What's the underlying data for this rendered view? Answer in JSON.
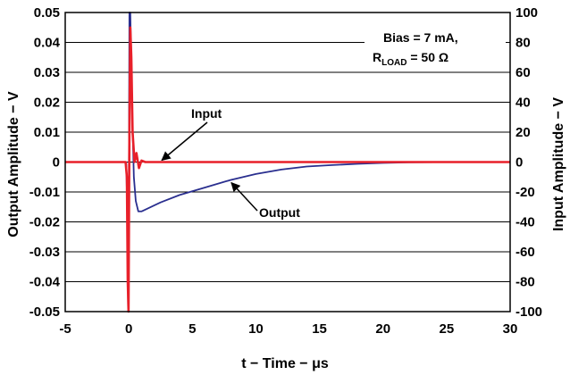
{
  "chart_data": {
    "type": "line",
    "xlabel": "t − Time − μs",
    "ylabel_left": "Output Amplitude − V",
    "ylabel_right": "Input Amplitude − V",
    "xlim": [
      -5,
      30
    ],
    "ylim_left": [
      -0.05,
      0.05
    ],
    "ylim_right": [
      -100,
      100
    ],
    "xticks": [
      "-5",
      "0",
      "5",
      "10",
      "15",
      "20",
      "25",
      "30"
    ],
    "yticks_left": [
      "0.05",
      "0.04",
      "0.03",
      "0.02",
      "0.01",
      "0",
      "-0.01",
      "-0.02",
      "-0.03",
      "-0.04",
      "-0.05"
    ],
    "yticks_right": [
      "100",
      "80",
      "60",
      "40",
      "20",
      "0",
      "-20",
      "-40",
      "-60",
      "-80",
      "-100"
    ],
    "grid": "horizontal",
    "annotation_box": {
      "line1": "Bias = 7 mA,",
      "line2_main": "R",
      "line2_sub": "LOAD",
      "line2_rest": " = 50 Ω"
    },
    "series": [
      {
        "name": "Input",
        "axis": "right",
        "color": "#e8202a",
        "points": [
          [
            -5,
            0
          ],
          [
            -0.25,
            0
          ],
          [
            -0.15,
            -10
          ],
          [
            -0.08,
            -80
          ],
          [
            -0.02,
            -100
          ],
          [
            0.05,
            20
          ],
          [
            0.12,
            90
          ],
          [
            0.2,
            70
          ],
          [
            0.3,
            20
          ],
          [
            0.45,
            0
          ],
          [
            0.6,
            6
          ],
          [
            0.8,
            -4
          ],
          [
            1.0,
            1
          ],
          [
            1.3,
            0
          ],
          [
            30,
            0
          ]
        ]
      },
      {
        "name": "Output",
        "axis": "left",
        "color": "#2a2f8f",
        "points": [
          [
            -5,
            0
          ],
          [
            -0.2,
            0
          ],
          [
            -0.1,
            -0.02
          ],
          [
            -0.05,
            -0.05
          ],
          [
            0.0,
            -0.02
          ],
          [
            0.05,
            0.05
          ],
          [
            0.12,
            0.05
          ],
          [
            0.25,
            0.02
          ],
          [
            0.4,
            -0.005
          ],
          [
            0.55,
            -0.013
          ],
          [
            0.75,
            -0.0165
          ],
          [
            1.0,
            -0.0165
          ],
          [
            1.5,
            -0.0155
          ],
          [
            2.5,
            -0.0135
          ],
          [
            4,
            -0.011
          ],
          [
            6,
            -0.0085
          ],
          [
            8,
            -0.006
          ],
          [
            10,
            -0.004
          ],
          [
            12,
            -0.0025
          ],
          [
            14,
            -0.0015
          ],
          [
            16,
            -0.001
          ],
          [
            18,
            -0.0006
          ],
          [
            20,
            -0.0003
          ],
          [
            22,
            -0.0001
          ],
          [
            25,
            0
          ],
          [
            30,
            0
          ]
        ]
      }
    ],
    "annotations": [
      {
        "text": "Input",
        "target": [
          2.6,
          0
        ]
      },
      {
        "text": "Output",
        "target": [
          8.0,
          -0.006
        ]
      }
    ]
  }
}
